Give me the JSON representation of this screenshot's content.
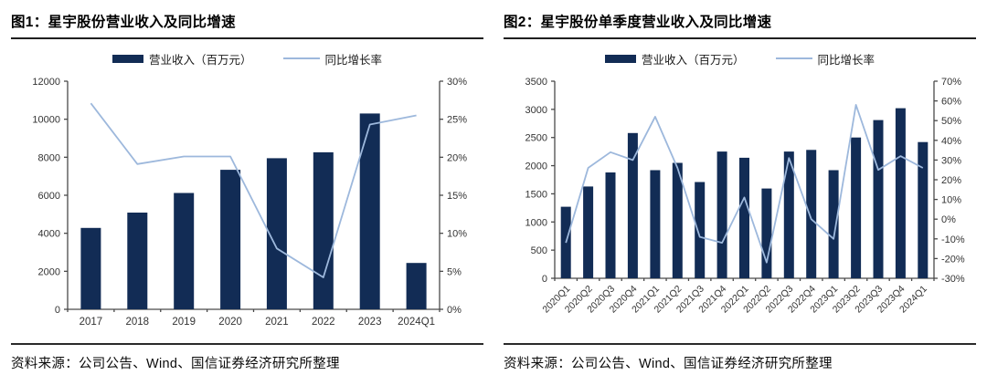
{
  "figures": [
    {
      "title": "图1：星宇股份营业收入及同比增速",
      "source": "资料来源：公司公告、Wind、国信证券经济研究所整理"
    },
    {
      "title": "图2：星宇股份单季度营业收入及同比增速",
      "source": "资料来源：公司公告、Wind、国信证券经济研究所整理"
    }
  ],
  "colors": {
    "bar": "#122c55",
    "line": "#9db8dc",
    "axis": "#4a4a4a",
    "tick_text": "#333333",
    "title_text": "#000000"
  },
  "chart_data": [
    {
      "type": "bar",
      "subtype": "bar+line-combo",
      "title": "图1：星宇股份营业收入及同比增速",
      "legend_position": "top",
      "grid": false,
      "categories": [
        "2017",
        "2018",
        "2019",
        "2020",
        "2021",
        "2022",
        "2023",
        "2024Q1"
      ],
      "series": [
        {
          "name": "营业收入（百万元）",
          "kind": "bar",
          "axis": "left",
          "values": [
            4280,
            5090,
            6120,
            7340,
            7950,
            8260,
            10300,
            2440
          ]
        },
        {
          "name": "同比增长率",
          "kind": "line",
          "axis": "right",
          "values_pct": [
            27.1,
            19.1,
            20.1,
            20.1,
            8.0,
            4.2,
            24.3,
            25.5
          ]
        }
      ],
      "left_axis": {
        "min": 0,
        "max": 12000,
        "ticks": [
          0,
          2000,
          4000,
          6000,
          8000,
          10000,
          12000
        ]
      },
      "right_axis": {
        "min": 0,
        "max": 30,
        "ticks_pct": [
          0,
          5,
          10,
          15,
          20,
          25,
          30
        ]
      }
    },
    {
      "type": "bar",
      "subtype": "bar+line-combo",
      "title": "图2：星宇股份单季度营业收入及同比增速",
      "legend_position": "top",
      "grid": false,
      "categories": [
        "2020Q1",
        "2020Q2",
        "2020Q3",
        "2020Q4",
        "2021Q1",
        "2021Q2",
        "2021Q3",
        "2021Q4",
        "2022Q1",
        "2022Q2",
        "2022Q3",
        "2022Q4",
        "2023Q1",
        "2023Q2",
        "2023Q3",
        "2023Q4",
        "2024Q1"
      ],
      "series": [
        {
          "name": "营业收入（百万元）",
          "kind": "bar",
          "axis": "left",
          "values": [
            1270,
            1630,
            1880,
            2580,
            1920,
            2050,
            1710,
            2250,
            2140,
            1595,
            2250,
            2280,
            1920,
            2500,
            2810,
            3020,
            2420
          ]
        },
        {
          "name": "同比增长率",
          "kind": "line",
          "axis": "right",
          "values_pct": [
            -12,
            26,
            34,
            30,
            52,
            26,
            -9,
            -12,
            11,
            -22,
            31,
            0,
            -10,
            58,
            25,
            32,
            26
          ]
        }
      ],
      "left_axis": {
        "min": 0,
        "max": 3500,
        "ticks": [
          0,
          500,
          1000,
          1500,
          2000,
          2500,
          3000,
          3500
        ]
      },
      "right_axis": {
        "min": -30,
        "max": 70,
        "ticks_pct": [
          70,
          60,
          50,
          40,
          30,
          20,
          10,
          0,
          -10,
          -20,
          -30
        ]
      }
    }
  ]
}
